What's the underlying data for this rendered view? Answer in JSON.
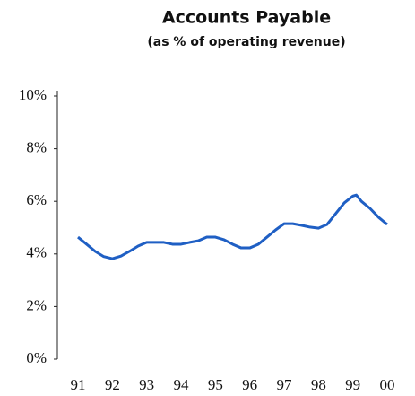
{
  "chart_data": {
    "type": "line",
    "title": "Accounts Payable",
    "subtitle": "(as % of operating revenue)",
    "x": [
      91,
      91.25,
      91.5,
      91.75,
      92,
      92.25,
      92.5,
      92.75,
      93,
      93.25,
      93.5,
      93.75,
      94,
      94.25,
      94.5,
      94.75,
      95,
      95.25,
      95.5,
      95.75,
      96,
      96.25,
      96.5,
      96.75,
      97,
      97.25,
      97.5,
      97.75,
      98,
      98.25,
      98.5,
      98.75,
      99,
      99.1,
      99.25,
      99.5,
      99.75,
      100
    ],
    "series": [
      {
        "name": "Accounts Payable",
        "color": "#1f5fc4",
        "values": [
          4.64,
          4.37,
          4.1,
          3.9,
          3.82,
          3.92,
          4.1,
          4.3,
          4.44,
          4.44,
          4.44,
          4.37,
          4.37,
          4.44,
          4.5,
          4.64,
          4.64,
          4.54,
          4.37,
          4.23,
          4.23,
          4.37,
          4.64,
          4.91,
          5.15,
          5.15,
          5.09,
          5.02,
          4.98,
          5.12,
          5.53,
          5.94,
          6.2,
          6.24,
          6.0,
          5.73,
          5.39,
          5.12
        ]
      }
    ],
    "xlim": [
      90.4,
      100.6
    ],
    "xticks": [
      91,
      92,
      93,
      94,
      95,
      96,
      97,
      98,
      99,
      {
        "value": 100,
        "label": "00"
      }
    ],
    "ylim": [
      0,
      10
    ],
    "yticks": [
      {
        "value": 0,
        "label": "0%"
      },
      {
        "value": 2,
        "label": "2%"
      },
      {
        "value": 4,
        "label": "4%"
      },
      {
        "value": 6,
        "label": "6%"
      },
      {
        "value": 8,
        "label": "8%"
      },
      {
        "value": 10,
        "label": "10%"
      }
    ],
    "grid": false
  }
}
